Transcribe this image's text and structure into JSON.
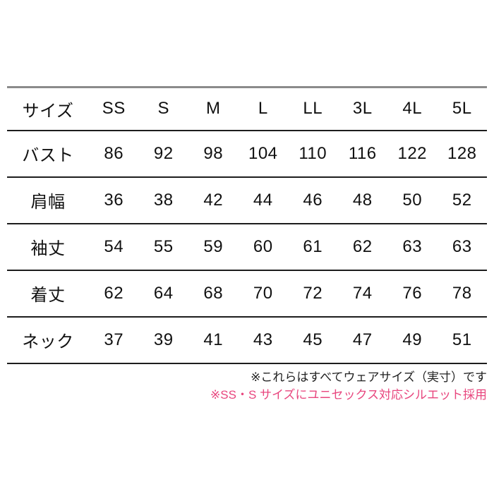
{
  "colors": {
    "background": "#ffffff",
    "text_black": "#111111",
    "highlight_pink": "#d4206f",
    "footnote_pink": "#e8467e",
    "top_rule_gray": "#8b8b8b",
    "row_rule_black": "#1d1d1d"
  },
  "chart_data": {
    "type": "table",
    "title": "",
    "columns": [
      "サイズ",
      "SS",
      "S",
      "M",
      "L",
      "LL",
      "3L",
      "4L",
      "5L"
    ],
    "rows": [
      [
        "バスト",
        86,
        92,
        98,
        104,
        110,
        116,
        122,
        128
      ],
      [
        "肩幅",
        36,
        38,
        42,
        44,
        46,
        48,
        50,
        52
      ],
      [
        "袖丈",
        54,
        55,
        59,
        60,
        61,
        62,
        63,
        63
      ],
      [
        "着丈",
        62,
        64,
        68,
        70,
        72,
        74,
        76,
        78
      ],
      [
        "ネック",
        37,
        39,
        41,
        43,
        45,
        47,
        49,
        51
      ]
    ],
    "highlighted_columns": [
      "SS",
      "S"
    ],
    "highlight_color": "#d4206f",
    "notes": [
      "※これらはすべてウェアサイズ（実寸）です",
      "※SS・S サイズにユニセックス対応シルエット採用"
    ]
  }
}
